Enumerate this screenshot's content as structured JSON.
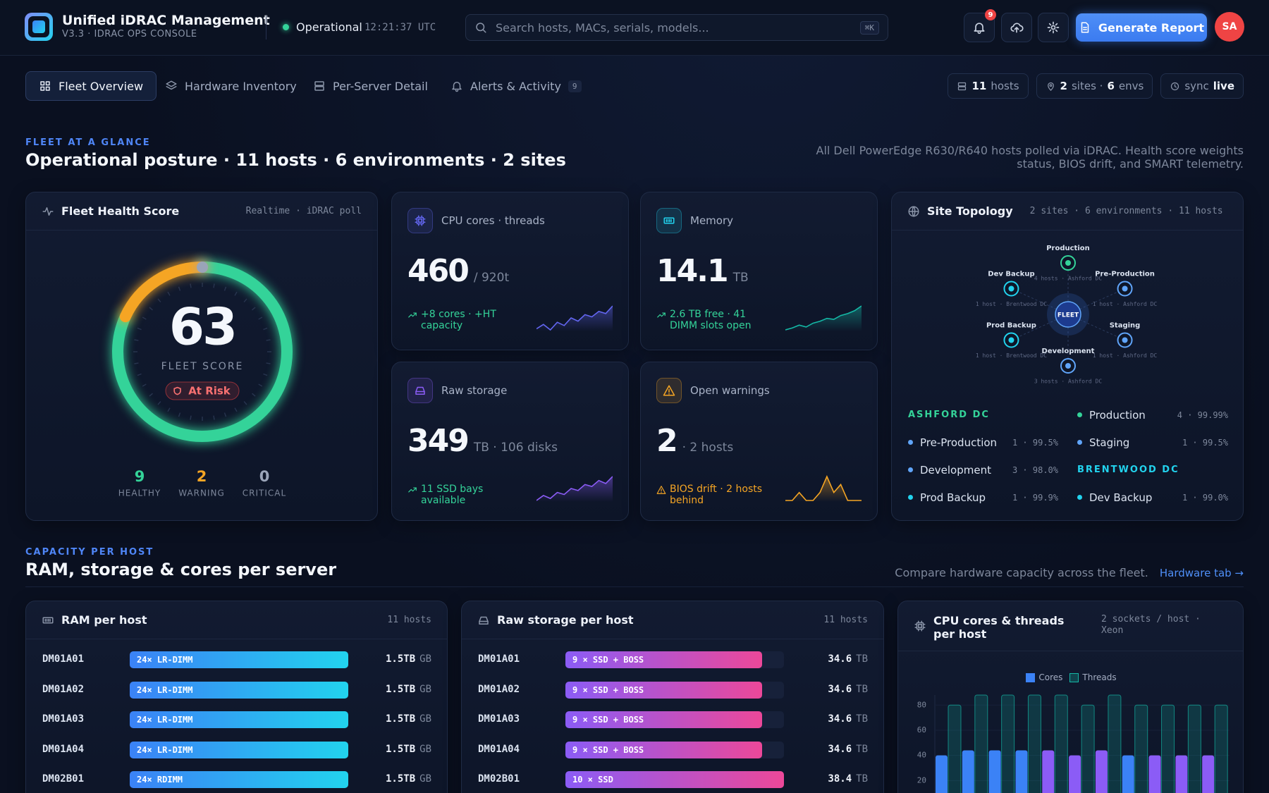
{
  "header": {
    "title": "Unified iDRAC Management",
    "subtitle": "V3.3 · IDRAC OPS CONSOLE",
    "status": "Operational",
    "time": "12:21:37 UTC",
    "search_placeholder": "Search hosts, MACs, serials, models...",
    "search_shortcut": "⌘K",
    "notification_count": "9",
    "report_button": "Generate Report",
    "avatar": "SA"
  },
  "tabs": [
    {
      "label": "Fleet Overview",
      "active": true
    },
    {
      "label": "Hardware Inventory"
    },
    {
      "label": "Per-Server Detail"
    },
    {
      "label": "Alerts & Activity",
      "badge": "9"
    }
  ],
  "chips": [
    {
      "parts": [
        {
          "text": "11",
          "bold": true
        },
        {
          "text": "hosts"
        }
      ]
    },
    {
      "parts": [
        {
          "text": "2",
          "bold": true
        },
        {
          "text": "sites ·"
        },
        {
          "text": "6",
          "bold": true
        },
        {
          "text": "envs"
        }
      ]
    },
    {
      "parts": [
        {
          "text": "sync"
        },
        {
          "text": "live",
          "bold": true
        }
      ]
    }
  ],
  "overview": {
    "eyebrow": "FLEET AT A GLANCE",
    "title": "Operational posture · 11 hosts · 6 environments · 2 sites",
    "description": "All Dell PowerEdge R630/R640 hosts polled via iDRAC. Health score weights status, BIOS drift, and SMART telemetry."
  },
  "health": {
    "title": "Fleet Health Score",
    "meta": "Realtime · iDRAC poll",
    "score": 63,
    "score_label": "FLEET SCORE",
    "status": "At Risk",
    "stats": [
      {
        "value": 9,
        "label": "HEALTHY",
        "color": "#34d399"
      },
      {
        "value": 2,
        "label": "WARNING",
        "color": "#f5a524"
      },
      {
        "value": 0,
        "label": "CRITICAL",
        "color": "#9aa4b8"
      }
    ]
  },
  "kpis": [
    {
      "label": "CPU cores · threads",
      "value": 460,
      "unit": "/ 920t",
      "note": "+8 cores · +HT capacity",
      "color": "#6366f1",
      "note_color": "#34d399",
      "spark_color": "#6366f1",
      "spark": [
        20,
        24,
        19,
        26,
        23,
        30,
        27,
        33,
        31,
        36,
        34,
        41
      ]
    },
    {
      "label": "Memory",
      "value": 14.1,
      "unit": "TB",
      "note": "2.6 TB free · 41 DIMM slots open",
      "color": "#22d3ee",
      "note_color": "#34d399",
      "spark_color": "#14b8a6",
      "spark": [
        10,
        12,
        15,
        13,
        17,
        19,
        22,
        21,
        25,
        27,
        30,
        35
      ]
    },
    {
      "label": "Raw storage",
      "value": 349,
      "unit": "TB · 106 disks",
      "note": "11 SSD bays available",
      "color": "#8b5cf6",
      "note_color": "#34d399",
      "spark_color": "#8b5cf6",
      "spark": [
        10,
        15,
        12,
        18,
        16,
        22,
        20,
        26,
        24,
        30,
        27,
        34
      ]
    },
    {
      "label": "Open warnings",
      "value": 2,
      "unit": "· 2 hosts",
      "note": "BIOS drift · 2 hosts behind",
      "color": "#f5a524",
      "note_color": "#f5a524",
      "spark_color": "#f5a524",
      "spark": [
        0,
        0,
        1,
        0,
        0,
        1,
        3,
        1,
        2,
        0,
        0,
        0
      ]
    }
  ],
  "topology": {
    "title": "Site Topology",
    "meta": "2 sites · 6 environments · 11 hosts",
    "center": "FLEET",
    "nodes": [
      {
        "name": "Production",
        "detail": "4 hosts · Ashford DC",
        "color": "#34d399"
      },
      {
        "name": "Pre-Production",
        "detail": "1 host · Ashford DC",
        "color": "#60a5fa"
      },
      {
        "name": "Staging",
        "detail": "1 host · Ashford DC",
        "color": "#60a5fa"
      },
      {
        "name": "Development",
        "detail": "3 hosts · Ashford DC",
        "color": "#60a5fa"
      },
      {
        "name": "Prod Backup",
        "detail": "1 host · Brentwood DC",
        "color": "#22d3ee"
      },
      {
        "name": "Dev Backup",
        "detail": "1 host · Brentwood DC",
        "color": "#22d3ee"
      }
    ],
    "legend": [
      {
        "site": "ASHFORD DC",
        "color": "#34d399"
      },
      {
        "name": "Production",
        "stat": "4 · 99.99%",
        "color": "#34d399"
      },
      {
        "name": "Pre-Production",
        "stat": "1 · 99.5%",
        "color": "#60a5fa"
      },
      {
        "name": "Staging",
        "stat": "1 · 99.5%",
        "color": "#60a5fa"
      },
      {
        "name": "Development",
        "stat": "3 · 98.0%",
        "color": "#60a5fa"
      },
      {
        "site": "BRENTWOOD DC",
        "color": "#22d3ee"
      },
      {
        "name": "Prod Backup",
        "stat": "1 · 99.9%",
        "color": "#22d3ee"
      },
      {
        "name": "Dev Backup",
        "stat": "1 · 99.0%",
        "color": "#22d3ee"
      }
    ]
  },
  "capacity": {
    "eyebrow": "CAPACITY PER HOST",
    "title": "RAM, storage & cores per server",
    "description": "Compare hardware capacity across the fleet.",
    "link": "Hardware tab →"
  },
  "ram": {
    "title": "RAM per host",
    "meta": "11 hosts",
    "xlim": [
      0,
      1.5
    ],
    "rows": [
      {
        "host": "DM01A01",
        "config": "24× LR-DIMM",
        "value": 1.5,
        "value_label": "1.5TB",
        "unit": "GB"
      },
      {
        "host": "DM01A02",
        "config": "24× LR-DIMM",
        "value": 1.5,
        "value_label": "1.5TB",
        "unit": "GB"
      },
      {
        "host": "DM01A03",
        "config": "24× LR-DIMM",
        "value": 1.5,
        "value_label": "1.5TB",
        "unit": "GB"
      },
      {
        "host": "DM01A04",
        "config": "24× LR-DIMM",
        "value": 1.5,
        "value_label": "1.5TB",
        "unit": "GB"
      },
      {
        "host": "DM02B01",
        "config": "24× RDIMM",
        "value": 1.5,
        "value_label": "1.5TB",
        "unit": "GB"
      }
    ]
  },
  "storage": {
    "title": "Raw storage per host",
    "meta": "11 hosts",
    "xlim": [
      0,
      38.4
    ],
    "rows": [
      {
        "host": "DM01A01",
        "config": "9 × SSD + BOSS",
        "value": 34.6,
        "unit": "TB"
      },
      {
        "host": "DM01A02",
        "config": "9 × SSD + BOSS",
        "value": 34.6,
        "unit": "TB"
      },
      {
        "host": "DM01A03",
        "config": "9 × SSD + BOSS",
        "value": 34.6,
        "unit": "TB"
      },
      {
        "host": "DM01A04",
        "config": "9 × SSD + BOSS",
        "value": 34.6,
        "unit": "TB"
      },
      {
        "host": "DM02B01",
        "config": "10 × SSD",
        "value": 38.4,
        "unit": "TB"
      }
    ]
  },
  "cpu_chart": {
    "type": "bar",
    "title": "CPU cores & threads per host",
    "meta": "2 sockets / host · Xeon",
    "ylim": [
      0,
      88
    ],
    "yticks": [
      20,
      40,
      60,
      80
    ],
    "series": [
      {
        "name": "Cores",
        "color": "#3b82f6",
        "colors": [
          "#3b82f6",
          "#3b82f6",
          "#3b82f6",
          "#3b82f6",
          "#8b5cf6",
          "#8b5cf6",
          "#8b5cf6",
          "#3b82f6",
          "#8b5cf6",
          "#8b5cf6",
          "#8b5cf6"
        ],
        "values": [
          40,
          44,
          44,
          44,
          44,
          40,
          44,
          40,
          40,
          40,
          40
        ]
      },
      {
        "name": "Threads",
        "color": "#14b8a6",
        "values": [
          80,
          88,
          88,
          88,
          88,
          80,
          88,
          80,
          80,
          80,
          80
        ]
      }
    ]
  }
}
